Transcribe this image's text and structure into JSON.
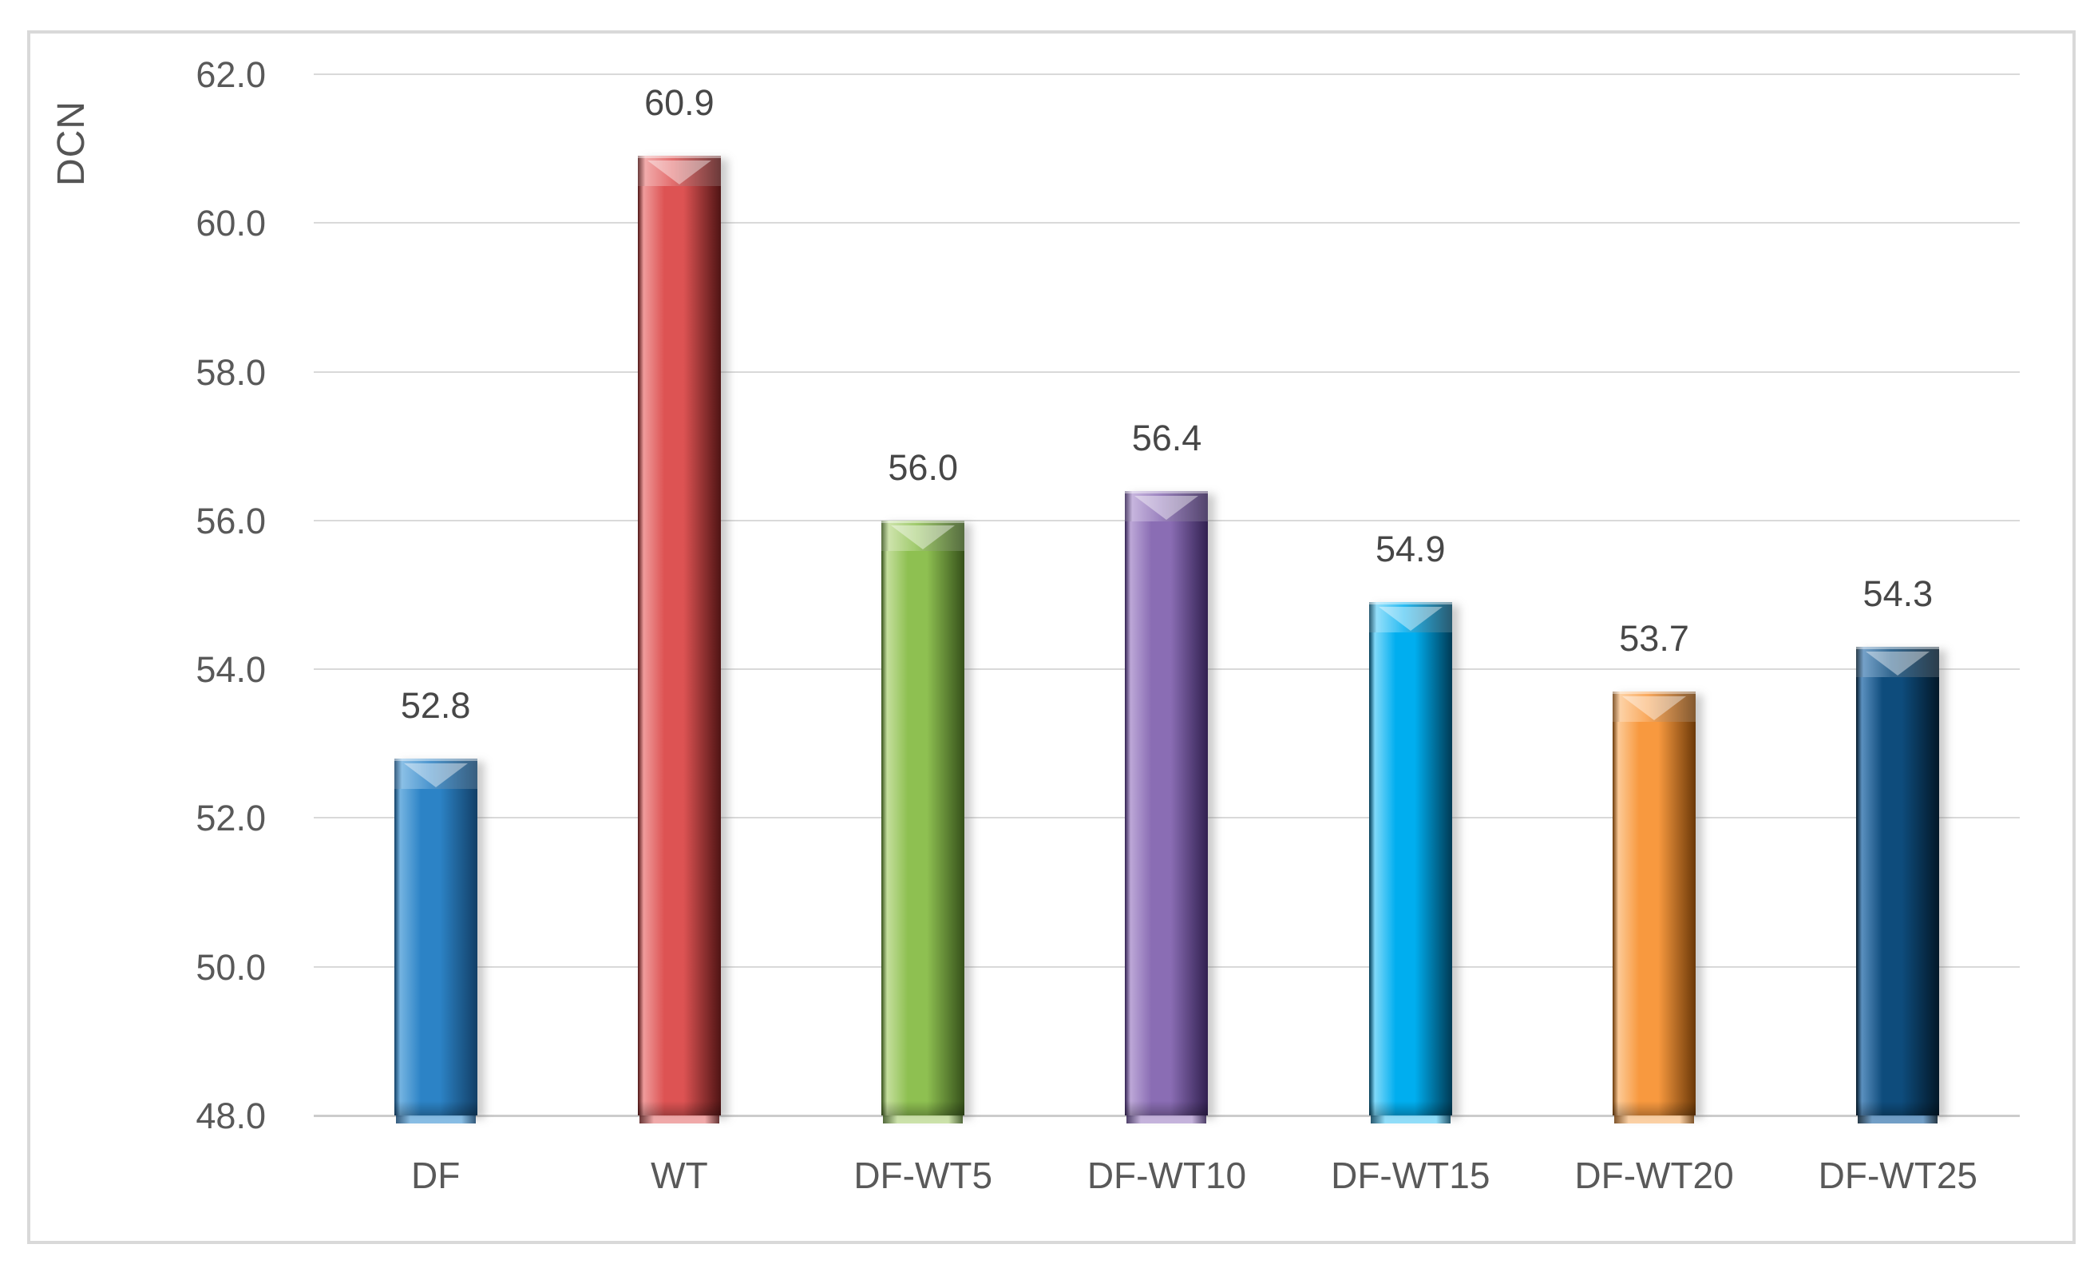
{
  "chart_data": {
    "type": "bar",
    "title": "",
    "xlabel": "",
    "ylabel": "DCN",
    "categories": [
      "DF",
      "WT",
      "DF-WT5",
      "DF-WT10",
      "DF-WT15",
      "DF-WT20",
      "DF-WT25"
    ],
    "values": [
      52.8,
      60.9,
      56.0,
      56.4,
      54.9,
      53.7,
      54.3
    ],
    "data_labels": [
      "52.8",
      "60.9",
      "56.0",
      "56.4",
      "54.9",
      "53.7",
      "54.3"
    ],
    "ylim": [
      48.0,
      62.0
    ],
    "ytick_step": 2.0,
    "yticks": [
      "62.0",
      "60.0",
      "58.0",
      "56.0",
      "54.0",
      "52.0",
      "50.0",
      "48.0"
    ],
    "grid": true,
    "legend_position": "none",
    "bar_style": "3d-bevel",
    "gridline_color": "#d9d9d9",
    "axis_text_color": "#595959",
    "frame_border_color": "#d9d9d9",
    "bar_colors": [
      {
        "name": "blue",
        "main": "#2C83C6",
        "light": "#74B3E1",
        "dark": "#123F66"
      },
      {
        "name": "red",
        "main": "#DD5353",
        "light": "#EF9B9B",
        "dark": "#4F1414"
      },
      {
        "name": "green",
        "main": "#8EC051",
        "light": "#C4DE9C",
        "dark": "#35501A"
      },
      {
        "name": "purple",
        "main": "#8A6DB4",
        "light": "#BCA7D7",
        "dark": "#312050"
      },
      {
        "name": "cyan",
        "main": "#00AEEF",
        "light": "#7FD9FA",
        "dark": "#003A54"
      },
      {
        "name": "orange",
        "main": "#F8993F",
        "light": "#FCC995",
        "dark": "#6B3908"
      },
      {
        "name": "navy",
        "main": "#0E4C7C",
        "light": "#5A8FBE",
        "dark": "#031828"
      }
    ]
  }
}
